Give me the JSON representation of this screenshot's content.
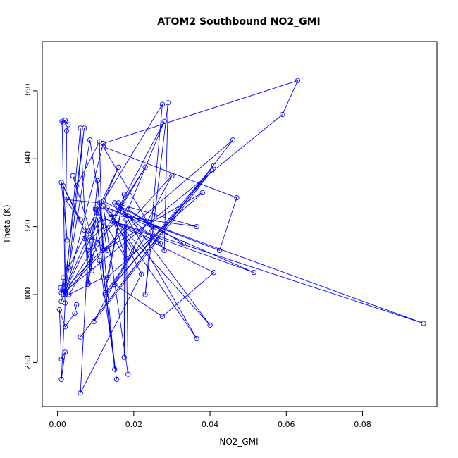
{
  "chart_data": {
    "type": "line",
    "title": "ATOM2 Southbound NO2_GMI",
    "xlabel": "NO2_GMI",
    "ylabel": "Theta (K)",
    "xlim": [
      -0.004,
      0.0995
    ],
    "ylim": [
      267,
      374.5
    ],
    "x_ticks": [
      0.0,
      0.02,
      0.04,
      0.06,
      0.08
    ],
    "x_tick_labels": [
      "0.00",
      "0.02",
      "0.04",
      "0.06",
      "0.08"
    ],
    "y_ticks": [
      280,
      300,
      320,
      340,
      360
    ],
    "y_tick_labels": [
      "280",
      "300",
      "320",
      "340",
      "360"
    ],
    "grid": false,
    "marker": "open-circle",
    "series": [
      {
        "color": "#0000ff",
        "points": [
          [
            0.0008,
            302.0
          ],
          [
            0.001,
            298.0
          ],
          [
            0.002,
            301.0
          ],
          [
            0.0012,
            351.0
          ],
          [
            0.0015,
            350.5
          ],
          [
            0.002,
            351.3
          ],
          [
            0.0028,
            350.0
          ],
          [
            0.0024,
            348.2
          ],
          [
            0.002,
            300.0
          ],
          [
            0.012,
            344.5
          ],
          [
            0.063,
            363.0
          ],
          [
            0.059,
            353.0
          ],
          [
            0.0015,
            300.5
          ],
          [
            0.016,
            337.5
          ],
          [
            0.003,
            308.0
          ],
          [
            0.007,
            349.0
          ],
          [
            0.0015,
            300.0
          ],
          [
            0.011,
            322.0
          ],
          [
            0.008,
            303.0
          ],
          [
            0.006,
            349.0
          ],
          [
            0.002,
            301.0
          ],
          [
            0.0085,
            345.5
          ],
          [
            0.013,
            313.0
          ],
          [
            0.007,
            319.0
          ],
          [
            0.001,
            333.0
          ],
          [
            0.0025,
            316.0
          ],
          [
            0.0015,
            332.0
          ],
          [
            0.006,
            322.0
          ],
          [
            0.002,
            328.0
          ],
          [
            0.011,
            327.0
          ],
          [
            0.015,
            278.0
          ],
          [
            0.01,
            325.0
          ],
          [
            0.0155,
            275.0
          ],
          [
            0.011,
            310.0
          ],
          [
            0.004,
            335.0
          ],
          [
            0.005,
            332.0
          ],
          [
            0.011,
            345.0
          ],
          [
            0.012,
            305.0
          ],
          [
            0.003,
            300.0
          ],
          [
            0.023,
            337.5
          ],
          [
            0.002,
            300.5
          ],
          [
            0.03,
            335.0
          ],
          [
            0.0095,
            292.0
          ],
          [
            0.0405,
            336.5
          ],
          [
            0.0125,
            300.0
          ],
          [
            0.041,
            338.0
          ],
          [
            0.006,
            287.5
          ],
          [
            0.046,
            345.5
          ],
          [
            0.012,
            313.0
          ],
          [
            0.038,
            330.0
          ],
          [
            0.013,
            305.0
          ],
          [
            0.0175,
            329.5
          ],
          [
            0.0125,
            300.5
          ],
          [
            0.025,
            320.0
          ],
          [
            0.012,
            327.5
          ],
          [
            0.0275,
            356.0
          ],
          [
            0.023,
            300.0
          ],
          [
            0.029,
            356.5
          ],
          [
            0.028,
            313.0
          ],
          [
            0.012,
            343.5
          ],
          [
            0.047,
            328.5
          ],
          [
            0.0425,
            313.0
          ],
          [
            0.013,
            325.5
          ],
          [
            0.096,
            291.5
          ],
          [
            0.012,
            322.5
          ],
          [
            0.0515,
            306.5
          ],
          [
            0.013,
            325.5
          ],
          [
            0.0365,
            287.0
          ],
          [
            0.016,
            327.0
          ],
          [
            0.04,
            291.0
          ],
          [
            0.014,
            323.5
          ],
          [
            0.0365,
            320.0
          ],
          [
            0.015,
            327.0
          ],
          [
            0.033,
            315.0
          ],
          [
            0.0185,
            325.0
          ],
          [
            0.028,
            351.0
          ],
          [
            0.016,
            325.5
          ],
          [
            0.027,
            315.0
          ],
          [
            0.0175,
            320.0
          ],
          [
            0.0175,
            281.5
          ],
          [
            0.018,
            322.0
          ],
          [
            0.0185,
            276.5
          ],
          [
            0.012,
            326.0
          ],
          [
            0.02,
            313.0
          ],
          [
            0.015,
            303.0
          ],
          [
            0.0275,
            293.5
          ],
          [
            0.041,
            306.5
          ],
          [
            0.015,
            321.0
          ],
          [
            0.008,
            313.0
          ],
          [
            0.006,
            271.0
          ],
          [
            0.022,
            306.0
          ],
          [
            0.014,
            324.0
          ],
          [
            0.018,
            310.5
          ],
          [
            0.01,
            325.5
          ],
          [
            0.012,
            320.0
          ],
          [
            0.0085,
            316.0
          ],
          [
            0.009,
            307.0
          ],
          [
            0.007,
            316.5
          ],
          [
            0.01,
            322.0
          ],
          [
            0.008,
            303.5
          ],
          [
            0.0105,
            333.5
          ],
          [
            0.012,
            313.5
          ],
          [
            0.001,
            300.5
          ],
          [
            0.0015,
            305.0
          ],
          [
            0.002,
            297.5
          ],
          [
            0.001,
            275.0
          ],
          [
            0.002,
            283.0
          ],
          [
            0.001,
            281.0
          ],
          [
            0.0005,
            295.5
          ],
          [
            0.002,
            290.5
          ],
          [
            0.0045,
            294.5
          ],
          [
            0.005,
            297.0
          ]
        ]
      }
    ]
  }
}
